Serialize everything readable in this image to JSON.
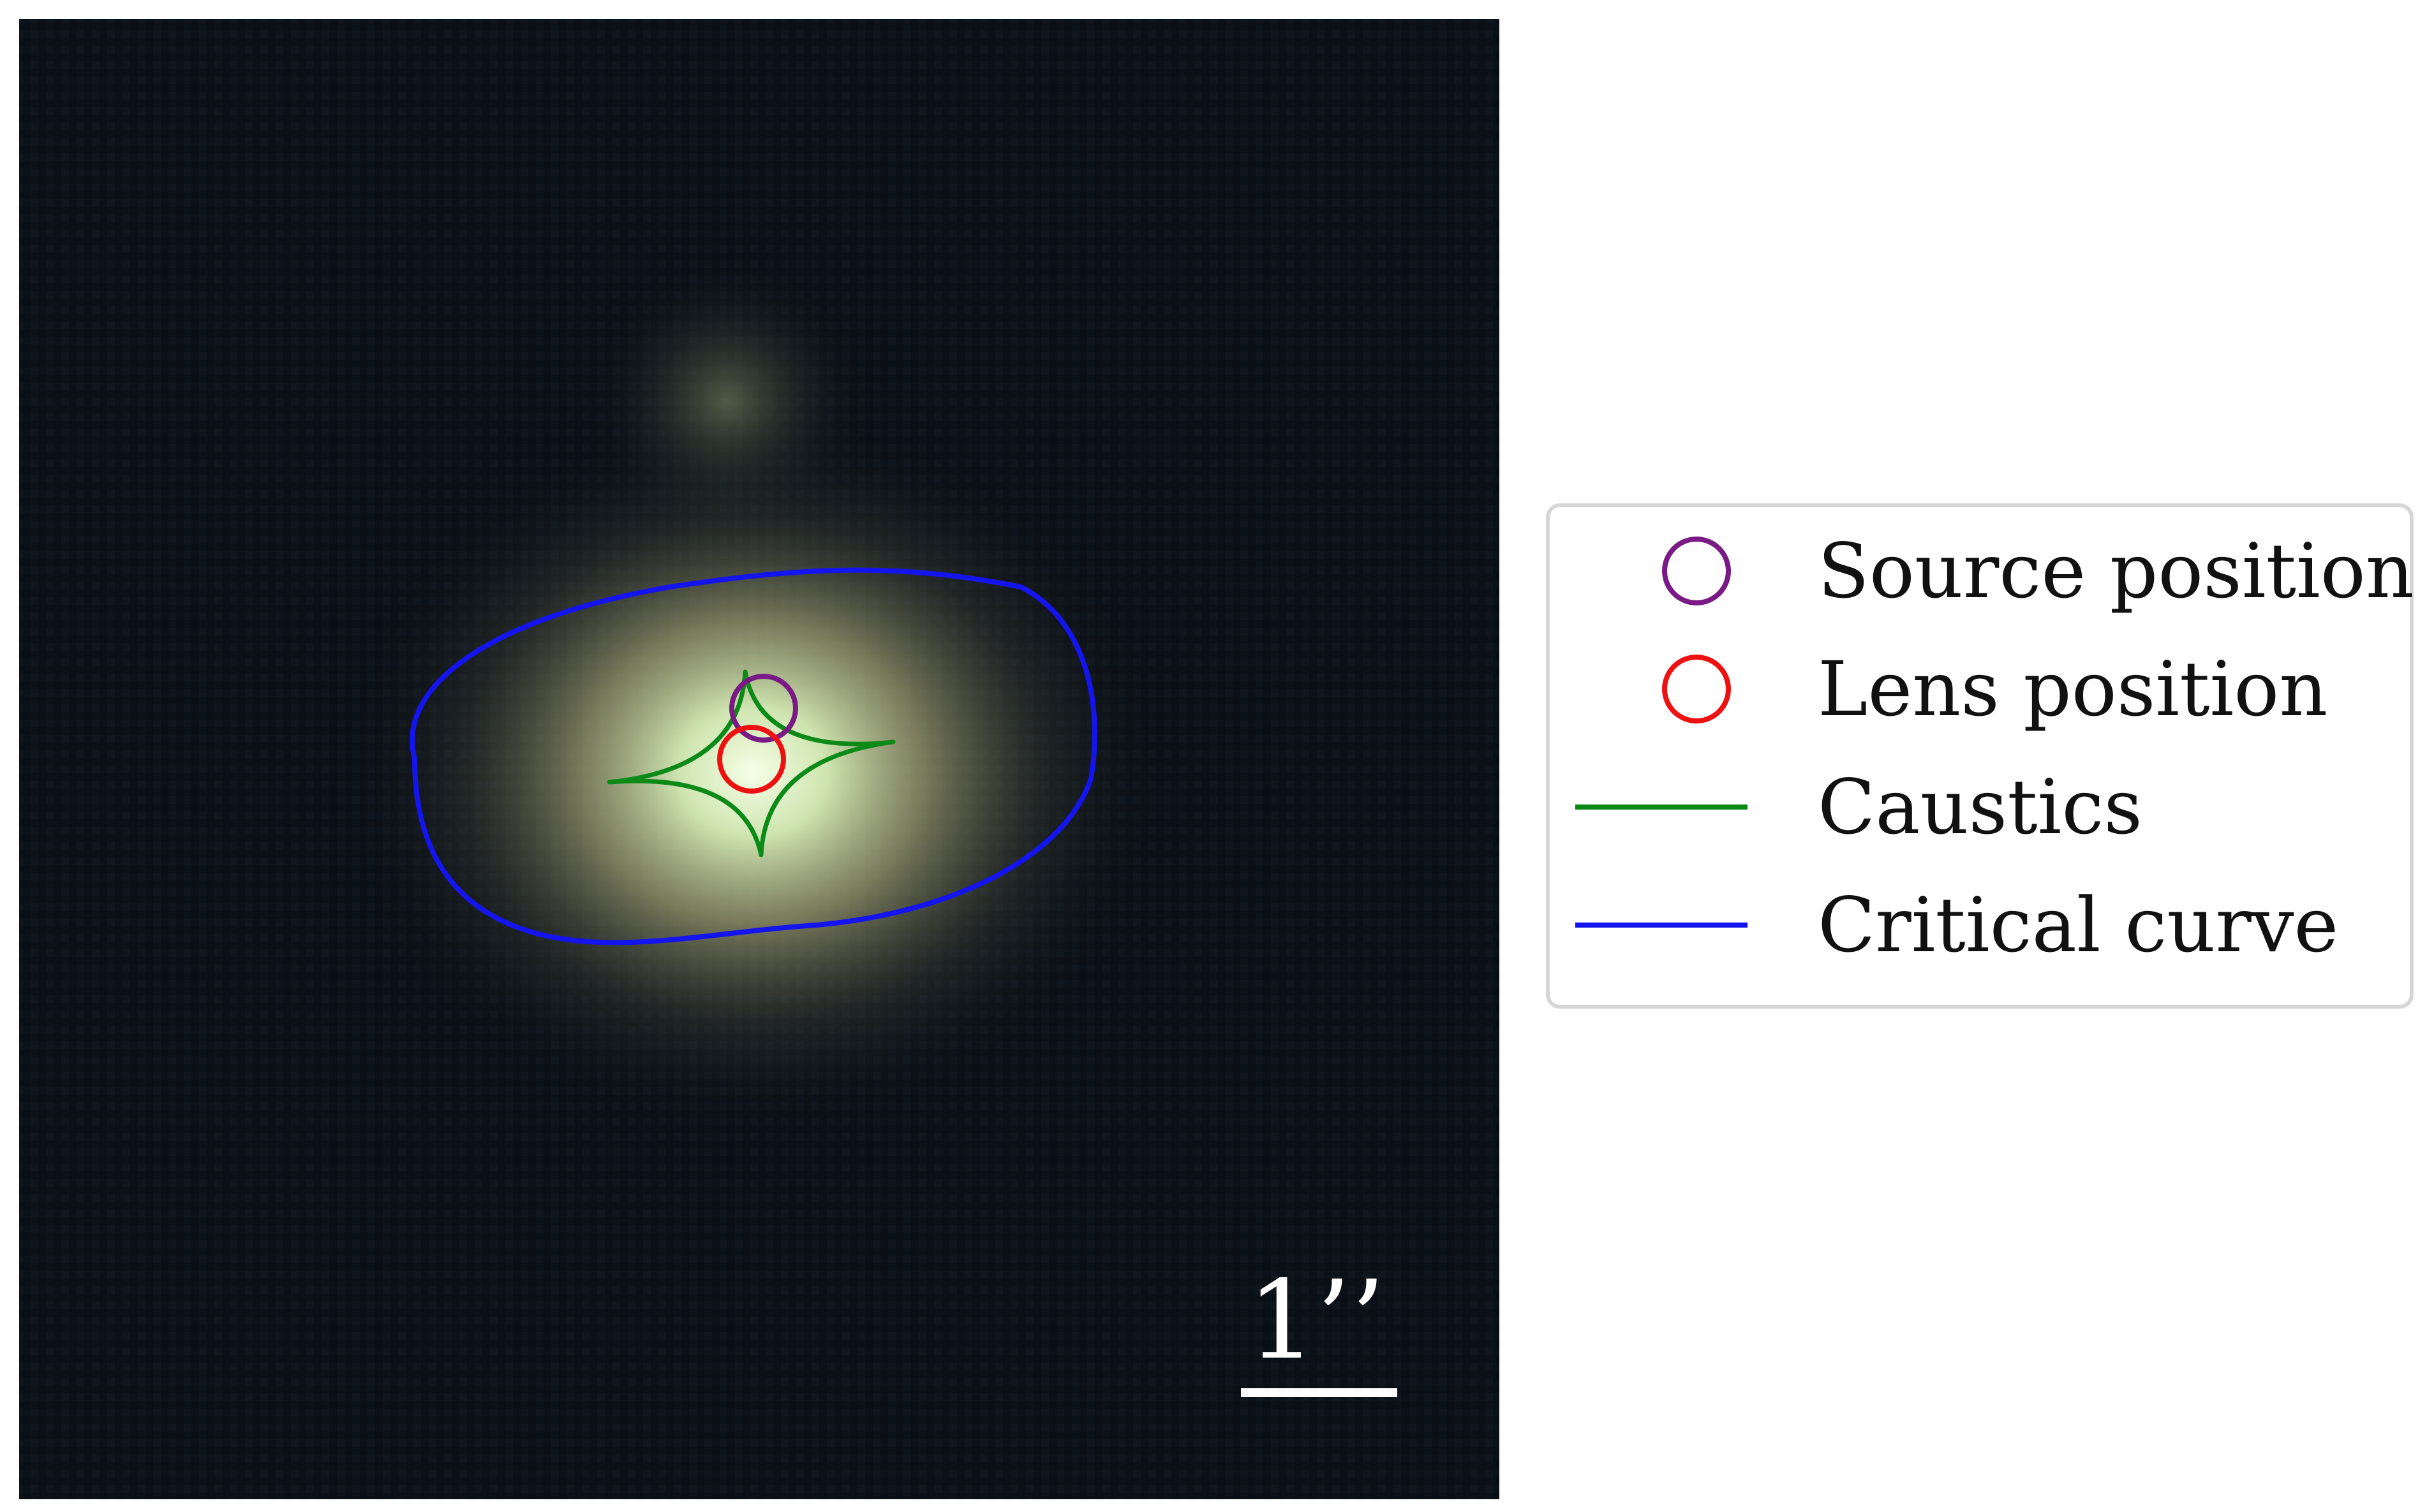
{
  "image": {
    "background_color": "#0b1118",
    "halo_color": "#c8d2a0",
    "core_color": "#f4ffe6"
  },
  "overlay": {
    "source_marker_color": "#7a1a85",
    "lens_marker_color": "#ee1111",
    "caustics_color": "#0c8a18",
    "critical_curve_color": "#1414ee"
  },
  "legend": {
    "items": [
      {
        "label": "Source position",
        "marker": "circle",
        "color": "#7a1a85"
      },
      {
        "label": "Lens position",
        "marker": "circle",
        "color": "#ee1111"
      },
      {
        "label": "Caustics",
        "marker": "line",
        "color": "#0c8a18"
      },
      {
        "label": "Critical curve",
        "marker": "line",
        "color": "#1414ee"
      }
    ]
  },
  "scale_bar": {
    "label": "1’’",
    "color": "#ffffff"
  }
}
